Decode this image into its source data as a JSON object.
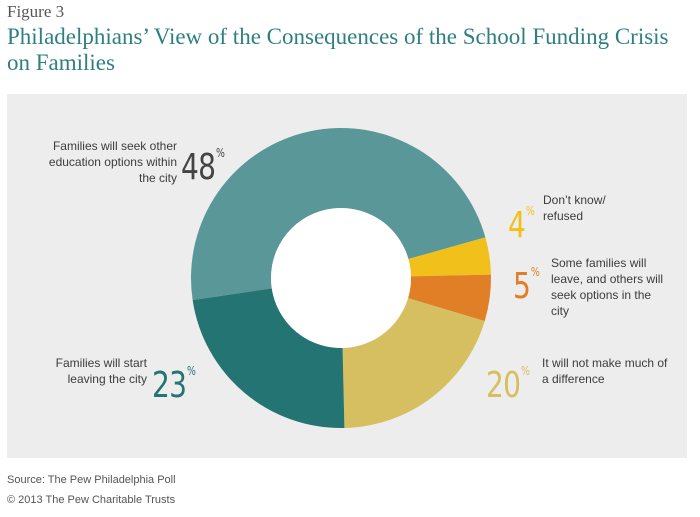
{
  "figure_label": "Figure 3",
  "title": "Philadelphians’ View of the Consequences of the School Funding Crisis on Families",
  "source": "Source: The Pew Philadelphia Poll",
  "copyright": "© 2013 The Pew Charitable Trusts",
  "chart_data": {
    "type": "pie",
    "style": "donut",
    "unit": "%",
    "categories": [
      "Families will seek other education options within the city",
      "Don’t know/ refused",
      "Some families will leave, and others will seek options in the city",
      "It will not make much of a difference",
      "Families will start leaving the city"
    ],
    "values": [
      48,
      4,
      5,
      20,
      23
    ],
    "colors": [
      "#5a9799",
      "#f2c01a",
      "#e07f26",
      "#d6bf60",
      "#237472"
    ],
    "label_colors": [
      "#444444",
      "#f2c01a",
      "#e07f26",
      "#d6bf60",
      "#237472"
    ],
    "pct_labels": [
      "48",
      "4",
      "5",
      "20",
      "23"
    ],
    "pct_symbol": "%"
  }
}
